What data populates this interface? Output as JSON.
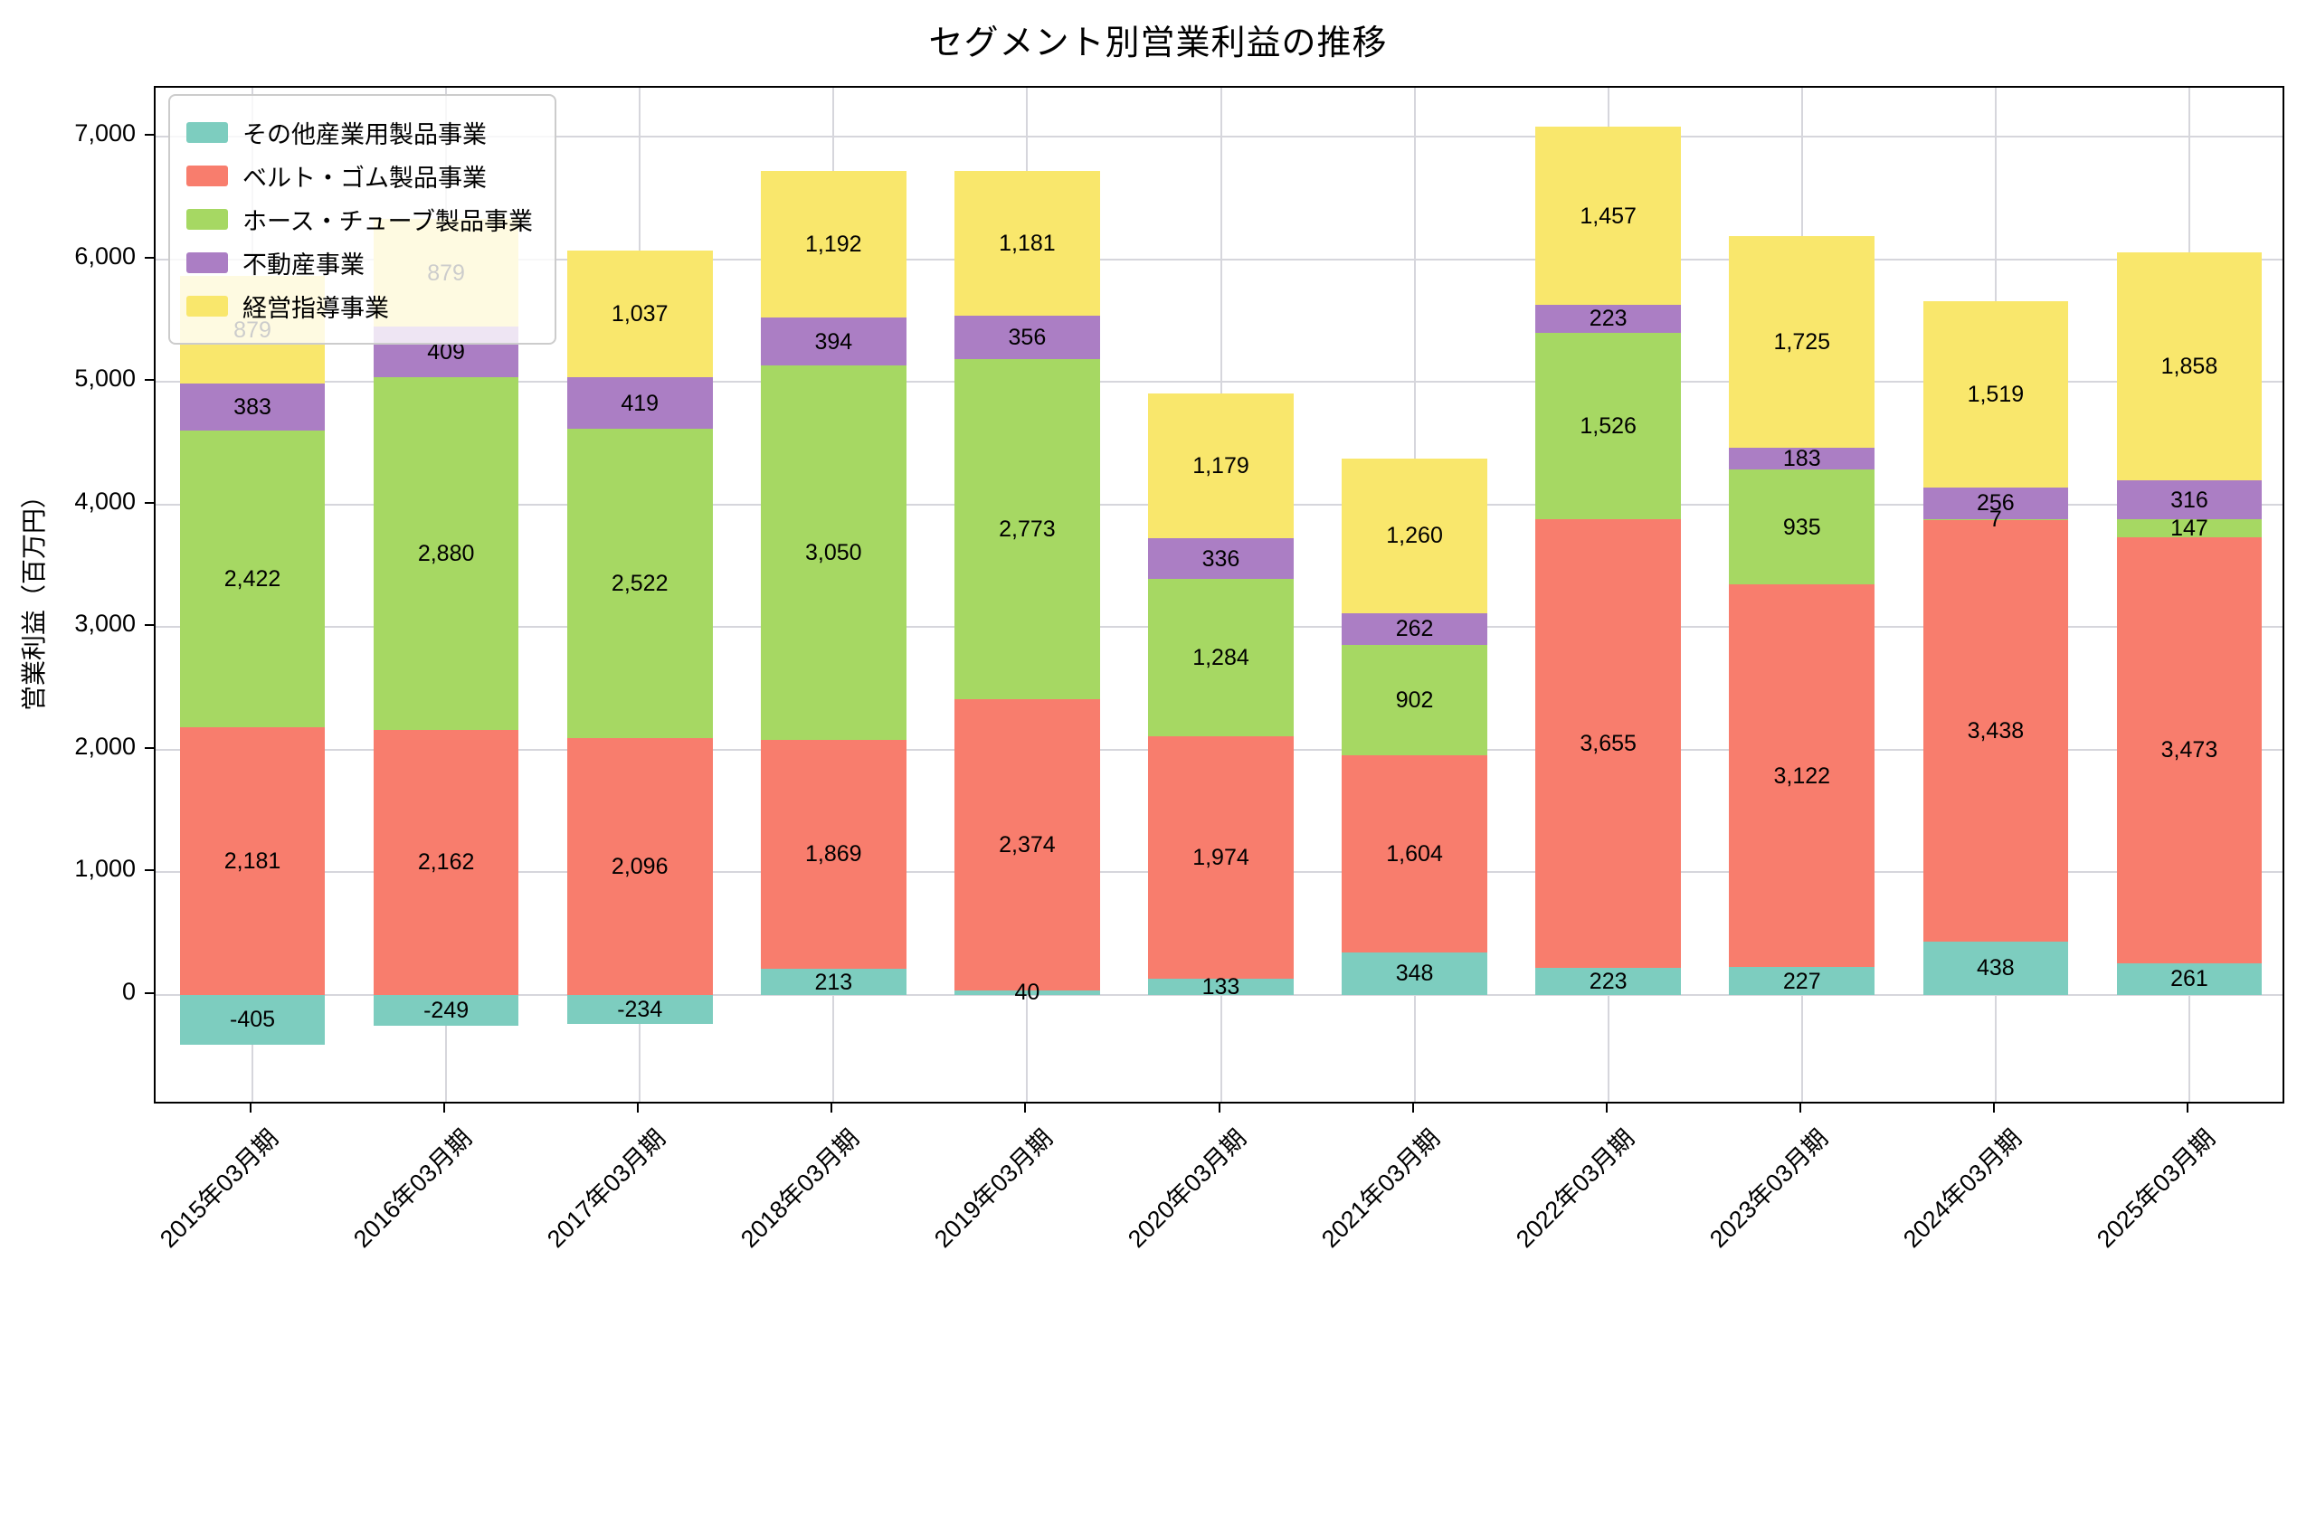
{
  "title": "セグメント別営業利益の推移",
  "chart_data": {
    "type": "bar",
    "stacked": true,
    "title": "セグメント別営業利益の推移",
    "xlabel": "",
    "ylabel": "営業利益（百万円）",
    "categories": [
      "2015年03月期",
      "2016年03月期",
      "2017年03月期",
      "2018年03月期",
      "2019年03月期",
      "2020年03月期",
      "2021年03月期",
      "2022年03月期",
      "2023年03月期",
      "2024年03月期",
      "2025年03月期"
    ],
    "series": [
      {
        "name": "その他産業用製品事業",
        "color": "#7dcdbf",
        "values": [
          -405,
          -249,
          -234,
          213,
          40,
          133,
          348,
          223,
          227,
          438,
          261
        ]
      },
      {
        "name": "ベルト・ゴム製品事業",
        "color": "#f87d6d",
        "values": [
          2181,
          2162,
          2096,
          1869,
          2374,
          1974,
          1604,
          3655,
          3122,
          3438,
          3473
        ]
      },
      {
        "name": "ホース・チューブ製品事業",
        "color": "#a6d863",
        "values": [
          2422,
          2880,
          2522,
          3050,
          2773,
          1284,
          902,
          1526,
          935,
          7,
          147
        ]
      },
      {
        "name": "不動産事業",
        "color": "#ab7ec4",
        "values": [
          383,
          409,
          419,
          394,
          356,
          336,
          262,
          223,
          183,
          256,
          316
        ]
      },
      {
        "name": "経営指導事業",
        "color": "#f9e76c",
        "values": [
          879,
          879,
          1037,
          1192,
          1181,
          1179,
          1260,
          1457,
          1725,
          1519,
          1858
        ]
      }
    ],
    "yticks": [
      0,
      1000,
      2000,
      3000,
      4000,
      5000,
      6000,
      7000
    ],
    "ylim": [
      -900,
      7400
    ],
    "grid": true,
    "legend_position": "upper left",
    "bar_width_frac": 0.75
  }
}
